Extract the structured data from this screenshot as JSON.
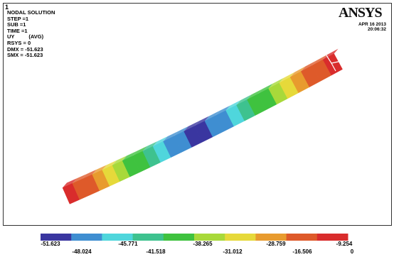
{
  "viewport": {
    "window_number": "1",
    "title": "NODAL SOLUTION",
    "info_lines": [
      "STEP =1",
      "SUB =1",
      "TIME =1"
    ],
    "uy_label": "UY",
    "uy_avg": "(AVG)",
    "rsys": "RSYS = 0",
    "dmx": "DMX = -51.623",
    "smx": "SMX = -51.623",
    "logo_text": "ANSYS",
    "date": "APR 16 2013",
    "time": "20:06:32"
  },
  "colors": {
    "bands": [
      "#3a36a0",
      "#3f8ed1",
      "#4fd6dc",
      "#3ec28f",
      "#3fc23f",
      "#a8d93a",
      "#e6d93a",
      "#e89b2e",
      "#de5a2a",
      "#d92c2c"
    ]
  },
  "legend": {
    "upper_values": [
      "-51.623",
      "-45.771",
      "-38.265",
      "-28.759",
      "-9.254"
    ],
    "lower_values": [
      "-48.024",
      "-41.518",
      "-31.012",
      "-16.506",
      "0"
    ]
  }
}
